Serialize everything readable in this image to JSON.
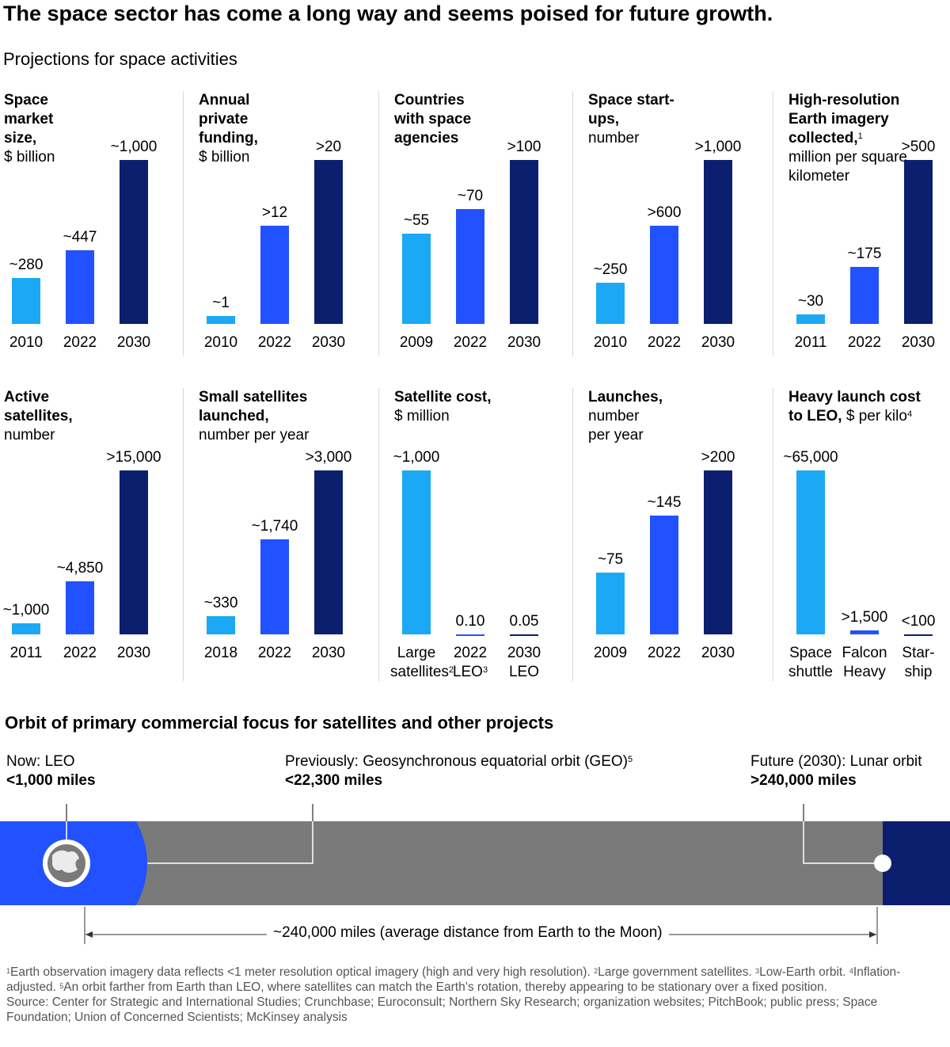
{
  "title": "The space sector has come a long way and seems poised for future growth.",
  "subtitle": "Projections for space activities",
  "chart_data": [
    {
      "type": "bar",
      "title": "Space market size,",
      "unit": "$ billion",
      "categories": [
        "2010",
        "2022",
        "2030"
      ],
      "values": [
        280,
        447,
        1000
      ],
      "value_labels": [
        "~280",
        "~447",
        "~1,000"
      ],
      "colors": [
        "#1ba9f5",
        "#2251ff",
        "#0b1f6e"
      ]
    },
    {
      "type": "bar",
      "title": "Annual private funding,",
      "unit": "$ billion",
      "categories": [
        "2010",
        "2022",
        "2030"
      ],
      "values": [
        1,
        12,
        20
      ],
      "value_labels": [
        "~1",
        ">12",
        ">20"
      ],
      "colors": [
        "#1ba9f5",
        "#2251ff",
        "#0b1f6e"
      ]
    },
    {
      "type": "bar",
      "title": "Countries with space agencies",
      "categories": [
        "2009",
        "2022",
        "2030"
      ],
      "values": [
        55,
        70,
        100
      ],
      "value_labels": [
        "~55",
        "~70",
        ">100"
      ],
      "colors": [
        "#1ba9f5",
        "#2251ff",
        "#0b1f6e"
      ]
    },
    {
      "type": "bar",
      "title": "Space start-ups,",
      "unit": "number",
      "categories": [
        "2010",
        "2022",
        "2030"
      ],
      "values": [
        250,
        600,
        1000
      ],
      "value_labels": [
        "~250",
        ">600",
        ">1,000"
      ],
      "colors": [
        "#1ba9f5",
        "#2251ff",
        "#0b1f6e"
      ]
    },
    {
      "type": "bar",
      "title": "High-resolution Earth imagery collected,",
      "title_note": "1",
      "unit": "million per square kilometer",
      "categories": [
        "2011",
        "2022",
        "2030"
      ],
      "values": [
        30,
        175,
        500
      ],
      "value_labels": [
        "~30",
        "~175",
        ">500"
      ],
      "colors": [
        "#1ba9f5",
        "#2251ff",
        "#0b1f6e"
      ]
    },
    {
      "type": "bar",
      "title": "Active satellites,",
      "unit": "number",
      "categories": [
        "2011",
        "2022",
        "2030"
      ],
      "values": [
        1000,
        4850,
        15000
      ],
      "value_labels": [
        "~1,000",
        "~4,850",
        ">15,000"
      ],
      "colors": [
        "#1ba9f5",
        "#2251ff",
        "#0b1f6e"
      ]
    },
    {
      "type": "bar",
      "title": "Small satellites launched,",
      "unit": "number per year",
      "categories": [
        "2018",
        "2022",
        "2030"
      ],
      "values": [
        330,
        1740,
        3000
      ],
      "value_labels": [
        "~330",
        "~1,740",
        ">3,000"
      ],
      "colors": [
        "#1ba9f5",
        "#2251ff",
        "#0b1f6e"
      ]
    },
    {
      "type": "bar",
      "title": "Satellite cost,",
      "unit": "$ million",
      "categories": [
        "Large satellites",
        "2022 LEO",
        "2030 LEO"
      ],
      "category_notes": [
        "2",
        "3",
        null
      ],
      "values": [
        1000,
        0.1,
        0.05
      ],
      "value_labels": [
        "~1,000",
        "0.10",
        "0.05"
      ],
      "colors": [
        "#1ba9f5",
        "#2251ff",
        "#0b1f6e"
      ]
    },
    {
      "type": "bar",
      "title": "Launches,",
      "unit": "number per year",
      "categories": [
        "2009",
        "2022",
        "2030"
      ],
      "values": [
        75,
        145,
        200
      ],
      "value_labels": [
        "~75",
        "~145",
        ">200"
      ],
      "colors": [
        "#1ba9f5",
        "#2251ff",
        "#0b1f6e"
      ]
    },
    {
      "type": "bar",
      "title": "Heavy launch cost to LEO,",
      "unit": "$ per kilo",
      "unit_note": "4",
      "categories": [
        "Space shuttle",
        "Falcon Heavy",
        "Star­ship"
      ],
      "values": [
        65000,
        1500,
        100
      ],
      "value_labels": [
        "~65,000",
        ">1,500",
        "<100"
      ],
      "colors": [
        "#1ba9f5",
        "#2251ff",
        "#0b1f6e"
      ]
    }
  ],
  "orbit": {
    "title": "Orbit of primary commercial focus for satellites and other projects",
    "stops": [
      {
        "label": "Now: LEO",
        "distance": "<1,000 miles"
      },
      {
        "label": "Previously: Geosynchronous equatorial orbit (GEO)",
        "note": "5",
        "distance": "<22,300 miles"
      },
      {
        "label": "Future (2030): Lunar orbit",
        "distance": ">240,000 miles"
      }
    ],
    "span": "~240,000 miles (average distance from Earth to the Moon)"
  },
  "footnotes": [
    {
      "mark": "1",
      "text": "Earth observation imagery data reflects <1 meter resolution optical imagery (high and very high resolution)."
    },
    {
      "mark": "2",
      "text": "Large government satellites."
    },
    {
      "mark": "3",
      "text": "Low-Earth orbit."
    },
    {
      "mark": "4",
      "text": "Inflation-adjusted."
    },
    {
      "mark": "5",
      "text": "An orbit farther from Earth than LEO, where satellites can match the Earth’s rotation, thereby appearing to be stationary over a fixed position."
    }
  ],
  "source": "Source: Center for Strategic and International Studies; Crunchbase; Euroconsult; Northern Sky Research; organization websites; PitchBook; public press; Space Foundation; Union of Concerned Scientists; McKinsey analysis"
}
